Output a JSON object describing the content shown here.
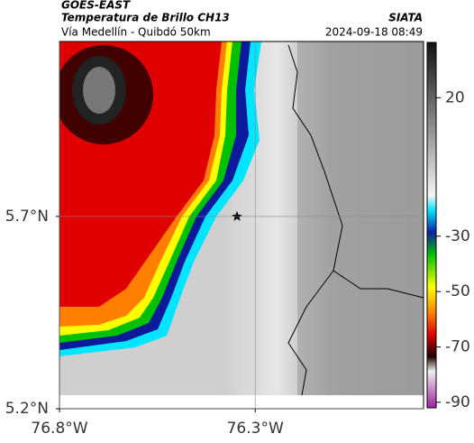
{
  "header": {
    "satellite": "GOES-EAST",
    "product": "Temperatura de Brillo CH13",
    "source": "SIATA",
    "route": "Vía Medellín - Quibdó 50km",
    "datetime": "2024-09-18 08:49"
  },
  "map": {
    "xlim": [
      -76.8,
      -75.87
    ],
    "ylim": [
      5.2,
      6.155
    ],
    "xticks": [
      {
        "value": -76.8,
        "label": "76.8°W"
      },
      {
        "value": -76.3,
        "label": "76.3°W"
      }
    ],
    "yticks": [
      {
        "value": 5.7,
        "label": "5.7°N"
      },
      {
        "value": 5.2,
        "label": "5.2°N"
      }
    ],
    "grid": true
  },
  "colorbar": {
    "lim": [
      -92,
      40
    ],
    "ticks": [
      20,
      -30,
      -50,
      -70,
      -90
    ]
  }
}
